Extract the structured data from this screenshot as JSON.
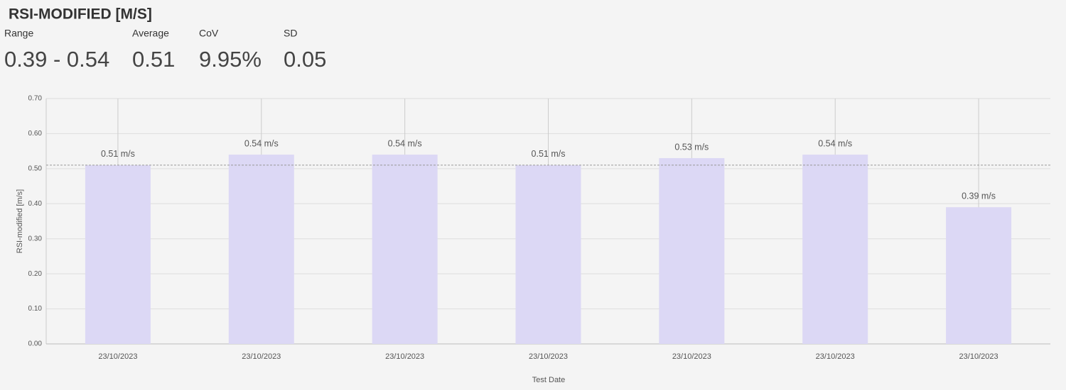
{
  "header": {
    "title": "RSI-MODIFIED [M/S]",
    "stats": [
      {
        "label": "Range",
        "value": "0.39 - 0.54"
      },
      {
        "label": "Average",
        "value": "0.51"
      },
      {
        "label": "CoV",
        "value": "9.95%"
      },
      {
        "label": "SD",
        "value": "0.05"
      }
    ]
  },
  "chart_data": {
    "type": "bar",
    "x_label": "Test Date",
    "y_label": "RSI-modified [m/s]",
    "categories": [
      "23/10/2023",
      "23/10/2023",
      "23/10/2023",
      "23/10/2023",
      "23/10/2023",
      "23/10/2023",
      "23/10/2023"
    ],
    "values": [
      0.51,
      0.54,
      0.54,
      0.51,
      0.53,
      0.54,
      0.39
    ],
    "value_labels": [
      "0.51 m/s",
      "0.54 m/s",
      "0.54 m/s",
      "0.51 m/s",
      "0.53 m/s",
      "0.54 m/s",
      "0.39 m/s"
    ],
    "color": "#dcd8f5",
    "average_line": 0.51,
    "ylim": [
      0,
      0.7
    ],
    "yticks": [
      {
        "value": 0,
        "label": "0.00"
      },
      {
        "value": 0.1,
        "label": "0.10"
      },
      {
        "value": 0.2,
        "label": "0.20"
      },
      {
        "value": 0.3,
        "label": "0.30"
      },
      {
        "value": 0.4,
        "label": "0.40"
      },
      {
        "value": 0.5,
        "label": "0.50"
      },
      {
        "value": 0.6,
        "label": "0.60"
      },
      {
        "value": 0.7,
        "label": "0.70"
      }
    ],
    "grid": true
  }
}
